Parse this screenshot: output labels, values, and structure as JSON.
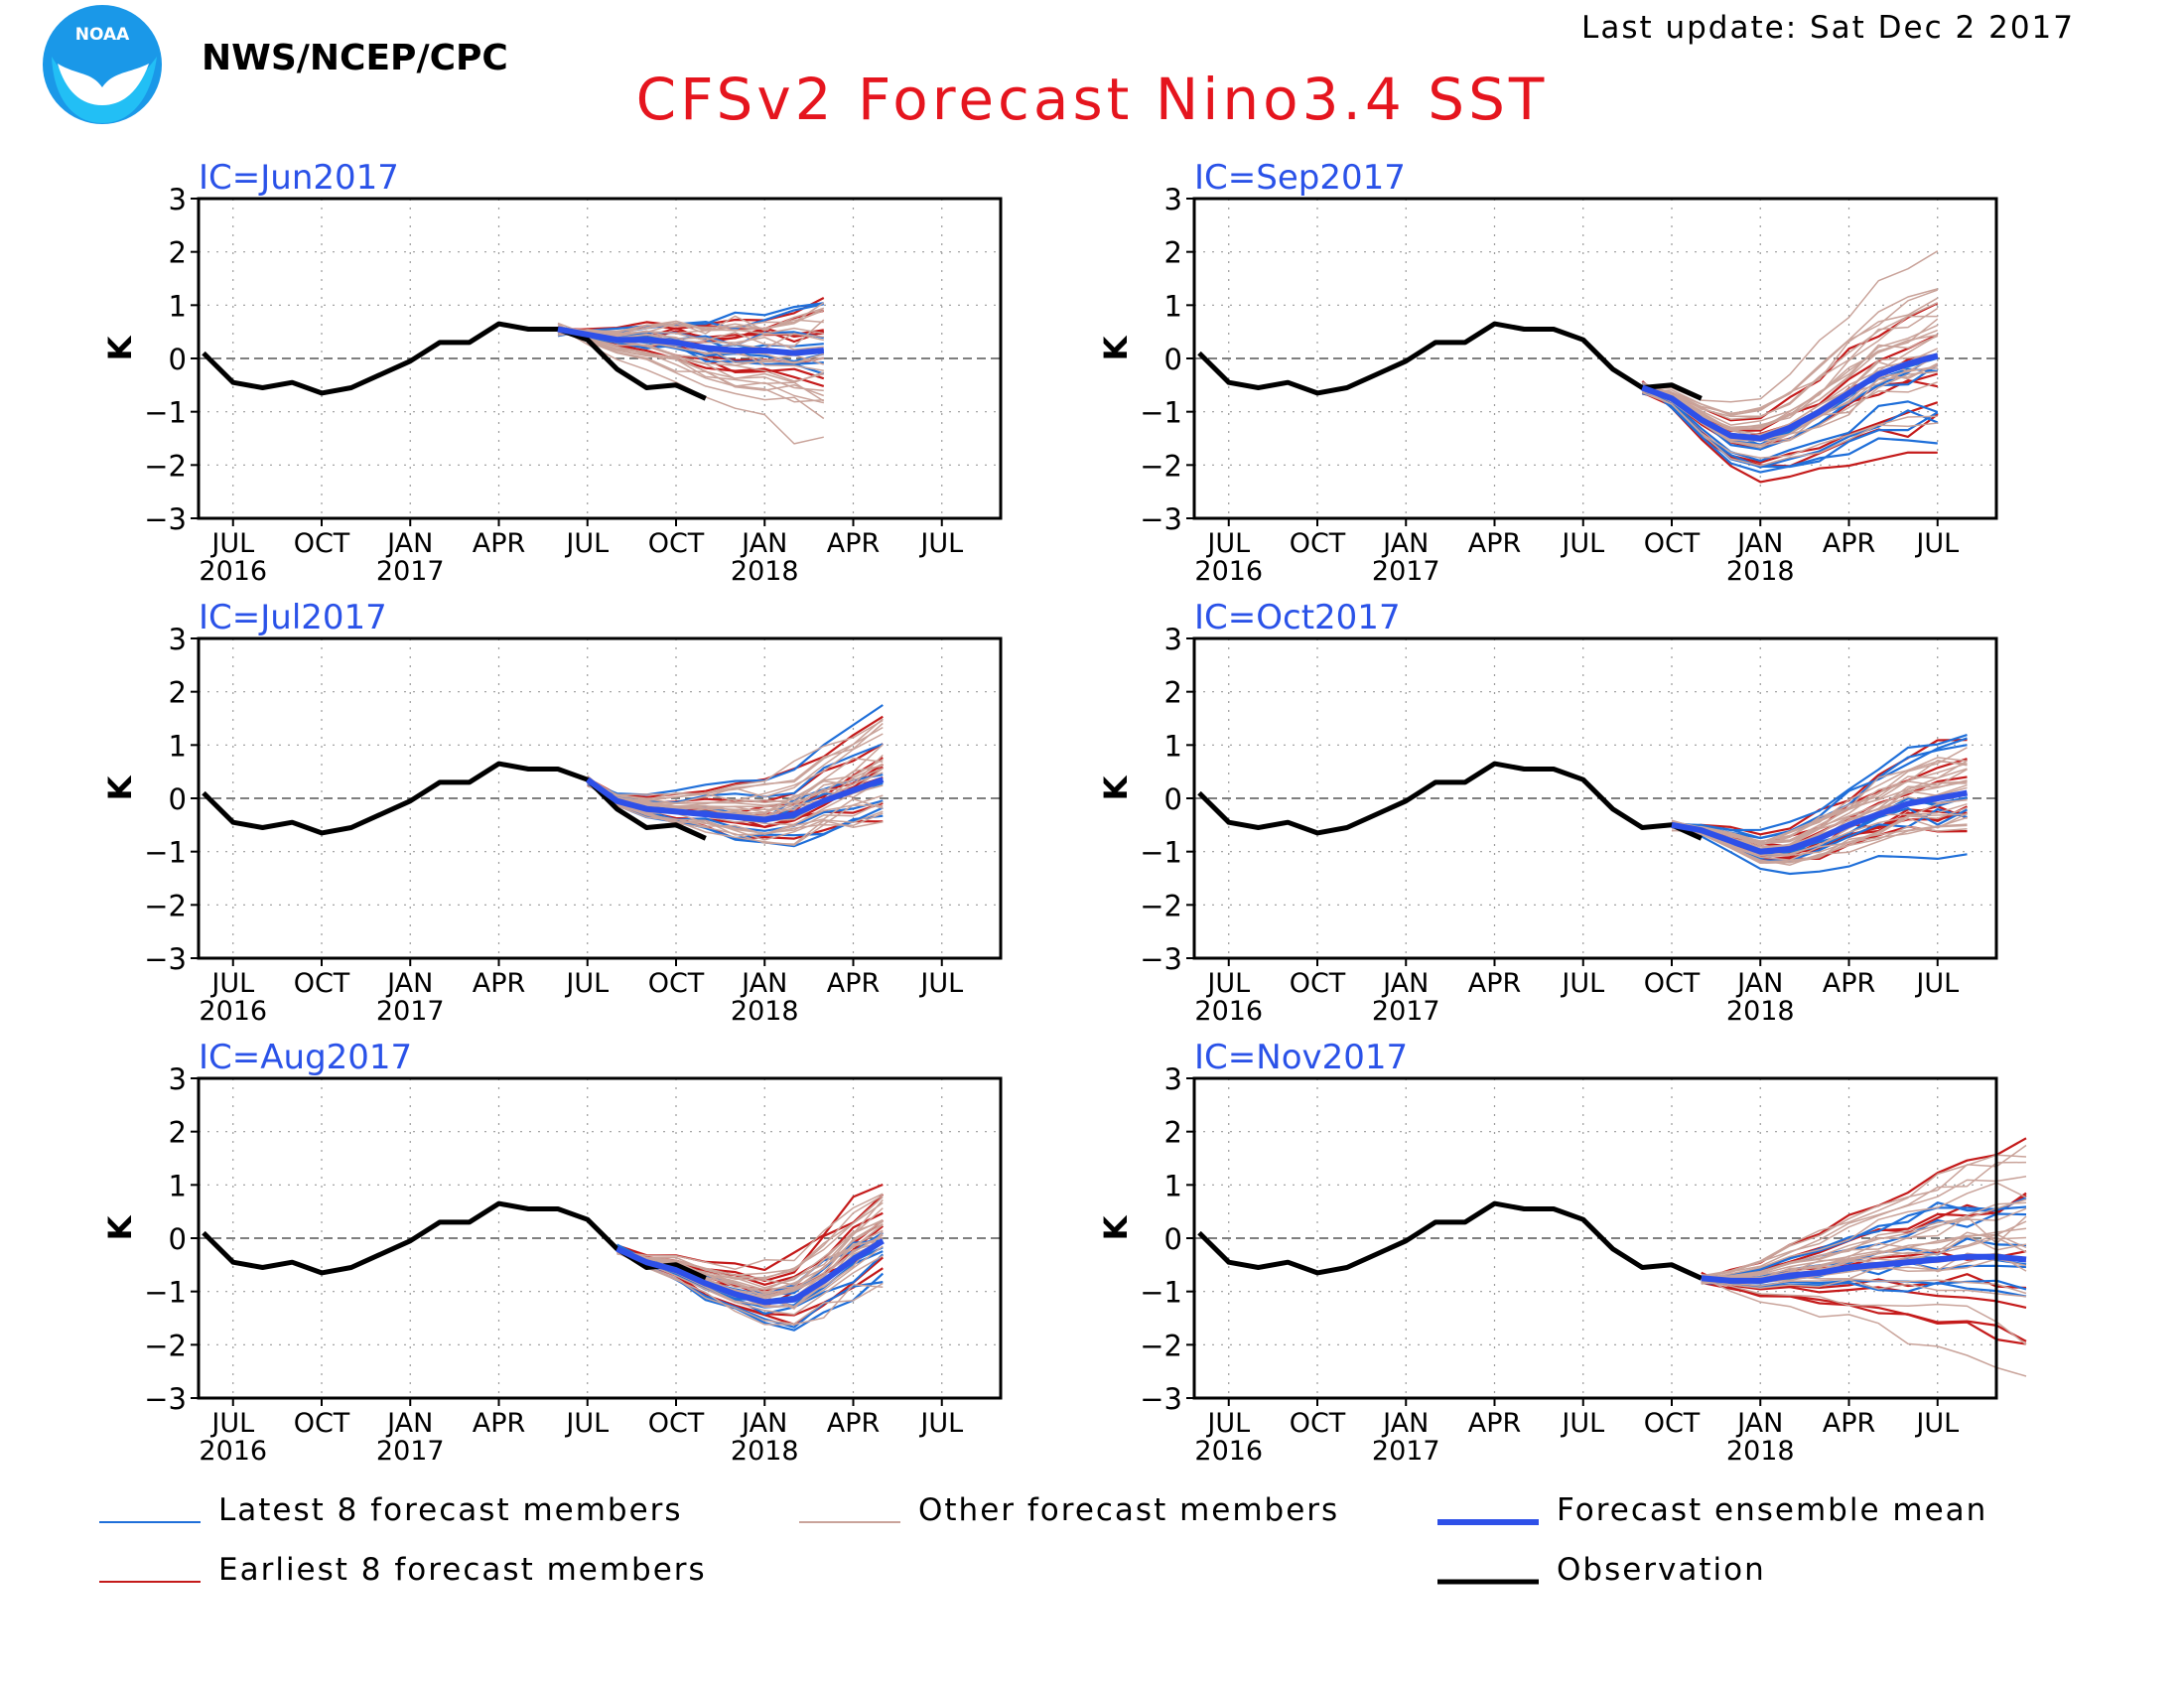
{
  "header": {
    "org": "NWS/NCEP/CPC",
    "title": "CFSv2 Forecast Nino3.4 SST",
    "last_update": "Last update: Sat Dec 2 2017",
    "logo_text": "NOAA"
  },
  "colors": {
    "title": "#e5151e",
    "ic_label": "#2a52e8",
    "latest": "#1f6fd9",
    "earliest": "#c41a1a",
    "other": "#c9a39a",
    "mean": "#2e50e8",
    "observation": "#000000"
  },
  "legend": [
    {
      "key": "latest",
      "label": "Latest 8 forecast members"
    },
    {
      "key": "other",
      "label": "Other forecast members"
    },
    {
      "key": "mean",
      "label": "Forecast ensemble mean"
    },
    {
      "key": "earliest",
      "label": "Earliest 8 forecast members"
    },
    {
      "key": "observation",
      "label": "Observation"
    }
  ],
  "chart_data": [
    {
      "type": "line",
      "title": "IC=Jun2017",
      "ylabel": "K",
      "ylim": [
        -3,
        3
      ],
      "yticks": [
        3,
        2,
        1,
        0,
        -1,
        -2,
        -3
      ],
      "xticks": [
        {
          "m": 1,
          "label": "JUL",
          "year": "2016"
        },
        {
          "m": 4,
          "label": "OCT",
          "year": ""
        },
        {
          "m": 7,
          "label": "JAN",
          "year": "2017"
        },
        {
          "m": 10,
          "label": "APR",
          "year": ""
        },
        {
          "m": 13,
          "label": "JUL",
          "year": ""
        },
        {
          "m": 16,
          "label": "OCT",
          "year": ""
        },
        {
          "m": 19,
          "label": "JAN",
          "year": "2018"
        },
        {
          "m": 22,
          "label": "APR",
          "year": ""
        },
        {
          "m": 25,
          "label": "JUL",
          "year": ""
        }
      ],
      "grid": true,
      "observation": [
        0.1,
        -0.45,
        -0.55,
        -0.45,
        -0.65,
        -0.55,
        -0.3,
        -0.05,
        0.3,
        0.3,
        0.65,
        0.55,
        0.55,
        0.35,
        -0.2,
        -0.55,
        -0.5,
        -0.75
      ],
      "ensemble_mean": [
        0.55,
        0.45,
        0.35,
        0.35,
        0.3,
        0.2,
        0.15,
        0.15,
        0.1,
        0.15
      ],
      "spread": {
        "start": 0.55,
        "end_min": -0.75,
        "end_max": 1.6
      }
    },
    {
      "type": "line",
      "title": "IC=Jul2017",
      "ylabel": "K",
      "ylim": [
        -3,
        3
      ],
      "yticks": [
        3,
        2,
        1,
        0,
        -1,
        -2,
        -3
      ],
      "xticks": [
        {
          "m": 1,
          "label": "JUL",
          "year": "2016"
        },
        {
          "m": 4,
          "label": "OCT",
          "year": ""
        },
        {
          "m": 7,
          "label": "JAN",
          "year": "2017"
        },
        {
          "m": 10,
          "label": "APR",
          "year": ""
        },
        {
          "m": 13,
          "label": "JUL",
          "year": ""
        },
        {
          "m": 16,
          "label": "OCT",
          "year": ""
        },
        {
          "m": 19,
          "label": "JAN",
          "year": "2018"
        },
        {
          "m": 22,
          "label": "APR",
          "year": ""
        },
        {
          "m": 25,
          "label": "JUL",
          "year": ""
        }
      ],
      "grid": true,
      "observation": [
        0.1,
        -0.45,
        -0.55,
        -0.45,
        -0.65,
        -0.55,
        -0.3,
        -0.05,
        0.3,
        0.3,
        0.65,
        0.55,
        0.55,
        0.35,
        -0.2,
        -0.55,
        -0.5,
        -0.75
      ],
      "ensemble_mean": [
        0.35,
        -0.05,
        -0.2,
        -0.25,
        -0.3,
        -0.35,
        -0.4,
        -0.3,
        -0.05,
        0.15,
        0.35
      ],
      "spread": {
        "start": 0.35,
        "end_min": -0.5,
        "end_max": 1.4
      }
    },
    {
      "type": "line",
      "title": "IC=Aug2017",
      "ylabel": "K",
      "ylim": [
        -3,
        3
      ],
      "yticks": [
        3,
        2,
        1,
        0,
        -1,
        -2,
        -3
      ],
      "xticks": [
        {
          "m": 1,
          "label": "JUL",
          "year": "2016"
        },
        {
          "m": 4,
          "label": "OCT",
          "year": ""
        },
        {
          "m": 7,
          "label": "JAN",
          "year": "2017"
        },
        {
          "m": 10,
          "label": "APR",
          "year": ""
        },
        {
          "m": 13,
          "label": "JUL",
          "year": ""
        },
        {
          "m": 16,
          "label": "OCT",
          "year": ""
        },
        {
          "m": 19,
          "label": "JAN",
          "year": "2018"
        },
        {
          "m": 22,
          "label": "APR",
          "year": ""
        },
        {
          "m": 25,
          "label": "JUL",
          "year": ""
        }
      ],
      "grid": true,
      "observation": [
        0.1,
        -0.45,
        -0.55,
        -0.45,
        -0.65,
        -0.55,
        -0.3,
        -0.05,
        0.3,
        0.3,
        0.65,
        0.55,
        0.55,
        0.35,
        -0.2,
        -0.55,
        -0.5,
        -0.75
      ],
      "ensemble_mean": [
        -0.2,
        -0.45,
        -0.6,
        -0.85,
        -1.05,
        -1.2,
        -1.15,
        -0.8,
        -0.4,
        -0.05
      ],
      "spread": {
        "start": -0.2,
        "end_min": -1.0,
        "end_max": 1.0
      }
    },
    {
      "type": "line",
      "title": "IC=Sep2017",
      "ylabel": "K",
      "ylim": [
        -3,
        3
      ],
      "yticks": [
        3,
        2,
        1,
        0,
        -1,
        -2,
        -3
      ],
      "xticks": [
        {
          "m": 1,
          "label": "JUL",
          "year": "2016"
        },
        {
          "m": 4,
          "label": "OCT",
          "year": ""
        },
        {
          "m": 7,
          "label": "JAN",
          "year": "2017"
        },
        {
          "m": 10,
          "label": "APR",
          "year": ""
        },
        {
          "m": 13,
          "label": "JUL",
          "year": ""
        },
        {
          "m": 16,
          "label": "OCT",
          "year": ""
        },
        {
          "m": 19,
          "label": "JAN",
          "year": "2018"
        },
        {
          "m": 22,
          "label": "APR",
          "year": ""
        },
        {
          "m": 25,
          "label": "JUL",
          "year": ""
        }
      ],
      "grid": true,
      "observation": [
        0.1,
        -0.45,
        -0.55,
        -0.45,
        -0.65,
        -0.55,
        -0.3,
        -0.05,
        0.3,
        0.3,
        0.65,
        0.55,
        0.55,
        0.35,
        -0.2,
        -0.55,
        -0.5,
        -0.75
      ],
      "ensemble_mean": [
        -0.55,
        -0.75,
        -1.15,
        -1.45,
        -1.5,
        -1.3,
        -1.0,
        -0.65,
        -0.3,
        -0.1,
        0.05
      ],
      "spread": {
        "start": -0.55,
        "end_min": -1.2,
        "end_max": 1.4
      }
    },
    {
      "type": "line",
      "title": "IC=Oct2017",
      "ylabel": "K",
      "ylim": [
        -3,
        3
      ],
      "yticks": [
        3,
        2,
        1,
        0,
        -1,
        -2,
        -3
      ],
      "xticks": [
        {
          "m": 1,
          "label": "JUL",
          "year": "2016"
        },
        {
          "m": 4,
          "label": "OCT",
          "year": ""
        },
        {
          "m": 7,
          "label": "JAN",
          "year": "2017"
        },
        {
          "m": 10,
          "label": "APR",
          "year": ""
        },
        {
          "m": 13,
          "label": "JUL",
          "year": ""
        },
        {
          "m": 16,
          "label": "OCT",
          "year": ""
        },
        {
          "m": 19,
          "label": "JAN",
          "year": "2018"
        },
        {
          "m": 22,
          "label": "APR",
          "year": ""
        },
        {
          "m": 25,
          "label": "JUL",
          "year": ""
        }
      ],
      "grid": true,
      "observation": [
        0.1,
        -0.45,
        -0.55,
        -0.45,
        -0.65,
        -0.55,
        -0.3,
        -0.05,
        0.3,
        0.3,
        0.65,
        0.55,
        0.55,
        0.35,
        -0.2,
        -0.55,
        -0.5,
        -0.75
      ],
      "ensemble_mean": [
        -0.5,
        -0.6,
        -0.8,
        -1.0,
        -0.95,
        -0.75,
        -0.5,
        -0.3,
        -0.1,
        0.0,
        0.1
      ],
      "spread": {
        "start": -0.5,
        "end_min": -0.7,
        "end_max": 1.45
      }
    },
    {
      "type": "line",
      "title": "IC=Nov2017",
      "ylabel": "K",
      "ylim": [
        -3,
        3
      ],
      "yticks": [
        3,
        2,
        1,
        0,
        -1,
        -2,
        -3
      ],
      "xticks": [
        {
          "m": 1,
          "label": "JUL",
          "year": "2016"
        },
        {
          "m": 4,
          "label": "OCT",
          "year": ""
        },
        {
          "m": 7,
          "label": "JAN",
          "year": "2017"
        },
        {
          "m": 10,
          "label": "APR",
          "year": ""
        },
        {
          "m": 13,
          "label": "JUL",
          "year": ""
        },
        {
          "m": 16,
          "label": "OCT",
          "year": ""
        },
        {
          "m": 19,
          "label": "JAN",
          "year": "2018"
        },
        {
          "m": 22,
          "label": "APR",
          "year": ""
        },
        {
          "m": 25,
          "label": "JUL",
          "year": ""
        }
      ],
      "grid": true,
      "observation": [
        0.1,
        -0.45,
        -0.55,
        -0.45,
        -0.65,
        -0.55,
        -0.3,
        -0.05,
        0.3,
        0.3,
        0.65,
        0.55,
        0.55,
        0.35,
        -0.2,
        -0.55,
        -0.5,
        -0.75
      ],
      "ensemble_mean": [
        -0.75,
        -0.8,
        -0.8,
        -0.7,
        -0.65,
        -0.55,
        -0.5,
        -0.45,
        -0.4,
        -0.35,
        -0.35,
        -0.4
      ],
      "spread": {
        "start": -0.75,
        "end_min": -1.55,
        "end_max": 2.55
      }
    }
  ]
}
